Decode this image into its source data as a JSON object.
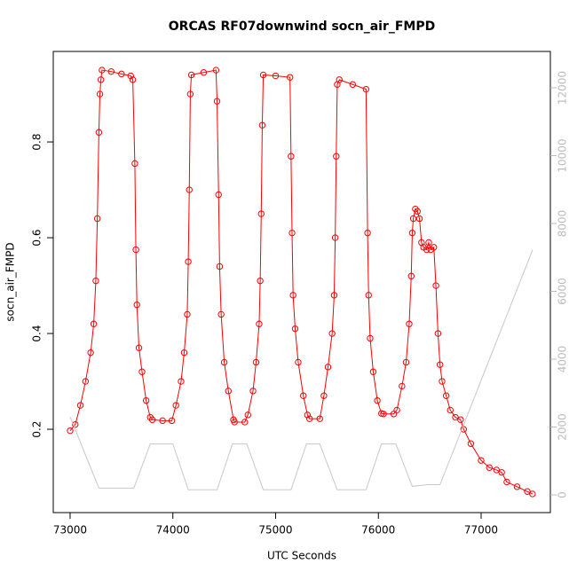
{
  "chart_data": {
    "type": "scatter",
    "title": "ORCAS RF07downwind socn_air_FMPD",
    "x_label": "UTC Seconds",
    "y_label": "socn_air_FMPD",
    "xlim": [
      72836,
      77674
    ],
    "ylim": [
      0.026,
      0.989
    ],
    "y2lim": [
      -523,
      13072
    ],
    "xticks": [
      73000,
      74000,
      75000,
      76000,
      77000
    ],
    "yticks": [
      0.2,
      0.4,
      0.6,
      0.8
    ],
    "y2ticks": [
      0,
      2000,
      4000,
      6000,
      8000,
      10000,
      12000
    ],
    "series": [
      {
        "color": "#ff0000",
        "x": [
          73000,
          73050,
          73100,
          73150,
          73200,
          73230,
          73250,
          73265,
          73280,
          73290,
          73300,
          73310,
          73400,
          73500,
          73590,
          73610,
          73630,
          73640,
          73650,
          73670,
          73700,
          73740,
          73780,
          73800,
          73900,
          73990,
          74030,
          74080,
          74110,
          74140,
          74150,
          74160,
          74170,
          74180,
          74300,
          74420,
          74430,
          74445,
          74455,
          74470,
          74500,
          74540,
          74590,
          74600,
          74700,
          74730,
          74780,
          74810,
          74840,
          74850,
          74860,
          74870,
          74880,
          75000,
          75140,
          75150,
          75160,
          75170,
          75190,
          75220,
          75270,
          75310,
          75330,
          75430,
          75470,
          75510,
          75550,
          75570,
          75580,
          75590,
          75600,
          75620,
          75750,
          75880,
          75895,
          75905,
          75920,
          75950,
          75990,
          76030,
          76050,
          76150,
          76180,
          76230,
          76270,
          76300,
          76320,
          76330,
          76340,
          76360,
          76380,
          76400,
          76420,
          76440,
          76470,
          76490,
          76510,
          76540,
          76560,
          76580,
          76600,
          76620,
          76660,
          76700,
          76750,
          76800,
          76830,
          76900,
          77000,
          77080,
          77150,
          77200,
          77250,
          77350,
          77450,
          77500
        ],
        "values": [
          0.197,
          0.21,
          0.25,
          0.3,
          0.36,
          0.42,
          0.51,
          0.64,
          0.82,
          0.9,
          0.93,
          0.95,
          0.947,
          0.942,
          0.938,
          0.93,
          0.755,
          0.575,
          0.46,
          0.37,
          0.32,
          0.26,
          0.225,
          0.22,
          0.218,
          0.218,
          0.25,
          0.3,
          0.36,
          0.44,
          0.55,
          0.7,
          0.9,
          0.94,
          0.945,
          0.95,
          0.885,
          0.69,
          0.54,
          0.44,
          0.34,
          0.28,
          0.22,
          0.215,
          0.215,
          0.23,
          0.28,
          0.34,
          0.42,
          0.51,
          0.65,
          0.835,
          0.94,
          0.938,
          0.935,
          0.77,
          0.61,
          0.48,
          0.41,
          0.34,
          0.27,
          0.23,
          0.222,
          0.222,
          0.27,
          0.33,
          0.4,
          0.48,
          0.6,
          0.77,
          0.92,
          0.93,
          0.92,
          0.91,
          0.61,
          0.48,
          0.39,
          0.32,
          0.26,
          0.233,
          0.232,
          0.232,
          0.24,
          0.29,
          0.34,
          0.42,
          0.52,
          0.61,
          0.64,
          0.66,
          0.655,
          0.64,
          0.59,
          0.58,
          0.575,
          0.59,
          0.575,
          0.58,
          0.5,
          0.4,
          0.335,
          0.3,
          0.27,
          0.24,
          0.225,
          0.22,
          0.2,
          0.17,
          0.135,
          0.12,
          0.115,
          0.11,
          0.09,
          0.08,
          0.07,
          0.065
        ]
      },
      {
        "color": "#c8c8c8",
        "axis": "y2",
        "x": [
          73000,
          73280,
          73620,
          73780,
          74000,
          74150,
          74430,
          74580,
          74720,
          74880,
          75150,
          75300,
          75430,
          75600,
          75880,
          76030,
          76170,
          76330,
          76480,
          76600,
          77500
        ],
        "values": [
          2300,
          200,
          200,
          1500,
          1500,
          150,
          150,
          1500,
          1500,
          150,
          150,
          1500,
          1500,
          150,
          150,
          1500,
          1500,
          250,
          300,
          300,
          7215
        ]
      }
    ]
  }
}
